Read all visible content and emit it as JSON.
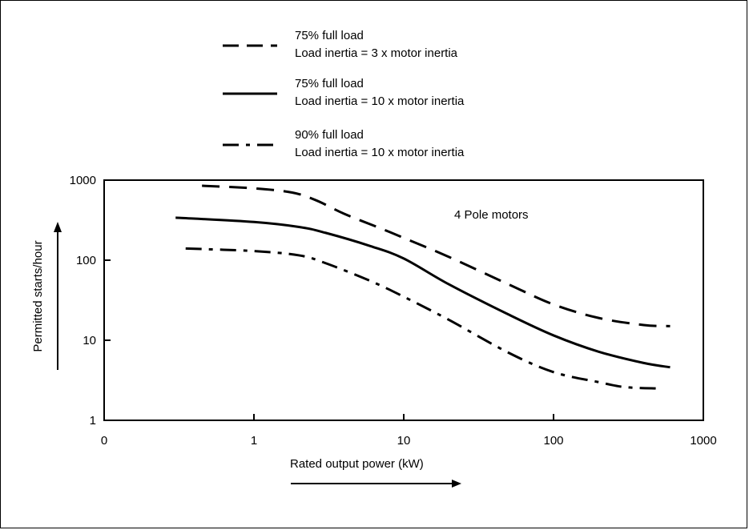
{
  "chart_data": {
    "type": "line",
    "annotation": "4 Pole motors",
    "xlabel": "Rated output power (kW)",
    "ylabel": "Permitted starts/hour",
    "xscale": "log",
    "yscale": "log",
    "x_ticks": [
      "0",
      "1",
      "10",
      "100",
      "1000"
    ],
    "y_ticks": [
      "1",
      "10",
      "100",
      "1000"
    ],
    "xlim": [
      0.1,
      1000
    ],
    "ylim": [
      1,
      1000
    ],
    "grid": false,
    "legend_position": "top",
    "series": [
      {
        "name": "75% full load\nLoad inertia = 3 x motor inertia",
        "line_style": "dashed",
        "color": "#000000",
        "x": [
          0.45,
          1,
          1.8,
          2.6,
          4,
          7,
          10,
          20,
          50,
          100,
          200,
          400,
          600
        ],
        "y": [
          850,
          790,
          700,
          560,
          380,
          250,
          190,
          110,
          50,
          28,
          19,
          15.5,
          15
        ]
      },
      {
        "name": "75% full load\nLoad inertia = 10 x motor inertia",
        "line_style": "solid",
        "color": "#000000",
        "x": [
          0.3,
          1,
          2,
          3,
          6,
          10,
          20,
          50,
          100,
          200,
          400,
          600
        ],
        "y": [
          340,
          300,
          260,
          220,
          150,
          105,
          50,
          21,
          11.5,
          7.2,
          5.2,
          4.6
        ]
      },
      {
        "name": "90% full load\nLoad inertia = 10 x motor inertia",
        "line_style": "dash-dot",
        "color": "#000000",
        "x": [
          0.35,
          1,
          2,
          3,
          6,
          10,
          20,
          50,
          100,
          200,
          300,
          500
        ],
        "y": [
          140,
          130,
          115,
          92,
          55,
          35,
          18,
          7,
          4,
          3,
          2.6,
          2.5
        ]
      }
    ]
  }
}
